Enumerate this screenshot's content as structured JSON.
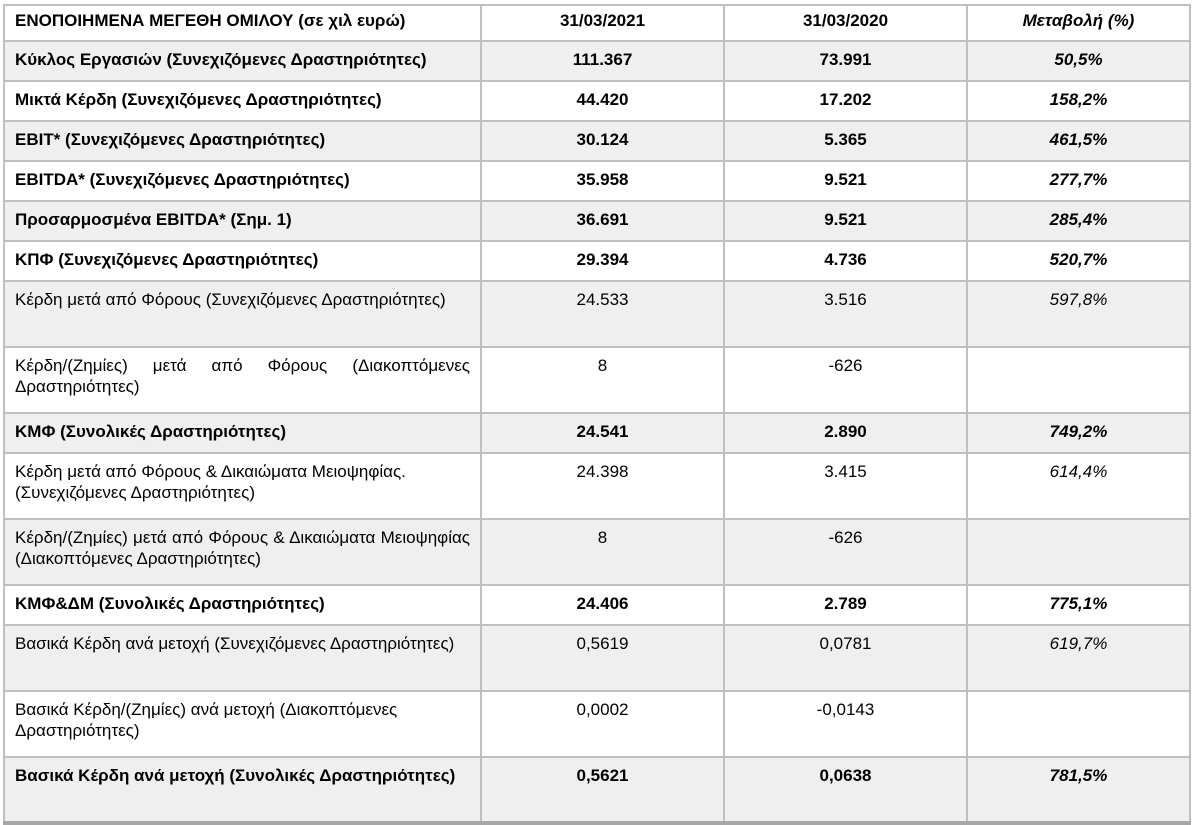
{
  "table": {
    "header": {
      "label": "ΕΝΟΠΟΙΗΜΕΝΑ ΜΕΓΕΘΗ ΟΜΙΛΟΥ (σε χιλ ευρώ)",
      "col_2021": "31/03/2021",
      "col_2020": "31/03/2020",
      "col_change": "Μεταβολή (%)"
    },
    "rows": [
      {
        "label": "Κύκλος Εργασιών (Συνεχιζόμενες Δραστηριότητες)",
        "v2021": "111.367",
        "v2020": "73.991",
        "change": "50,5%",
        "bold": true,
        "shaded": true,
        "tall": false,
        "justify": false
      },
      {
        "label": "Μικτά Κέρδη (Συνεχιζόμενες Δραστηριότητες)",
        "v2021": "44.420",
        "v2020": "17.202",
        "change": "158,2%",
        "bold": true,
        "shaded": false,
        "tall": false,
        "justify": false
      },
      {
        "label": "EBIT* (Συνεχιζόμενες Δραστηριότητες)",
        "v2021": "30.124",
        "v2020": "5.365",
        "change": "461,5%",
        "bold": true,
        "shaded": true,
        "tall": false,
        "justify": false
      },
      {
        "label": "EBITDA* (Συνεχιζόμενες Δραστηριότητες)",
        "v2021": "35.958",
        "v2020": "9.521",
        "change": "277,7%",
        "bold": true,
        "shaded": false,
        "tall": false,
        "justify": false
      },
      {
        "label": "Προσαρμοσμένα EBITDA* (Σημ. 1)",
        "v2021": "36.691",
        "v2020": "9.521",
        "change": "285,4%",
        "bold": true,
        "shaded": true,
        "tall": false,
        "justify": false
      },
      {
        "label": "ΚΠΦ (Συνεχιζόμενες Δραστηριότητες)",
        "v2021": "29.394",
        "v2020": "4.736",
        "change": "520,7%",
        "bold": true,
        "shaded": false,
        "tall": false,
        "justify": false
      },
      {
        "label": "Κέρδη μετά από Φόρους (Συνεχιζόμενες Δραστηριότητες)",
        "v2021": "24.533",
        "v2020": "3.516",
        "change": "597,8%",
        "bold": false,
        "shaded": true,
        "tall": true,
        "justify": false
      },
      {
        "label": "Κέρδη/(Ζημίες) μετά από Φόρους (Διακοπτόμενες Δραστηριότητες)",
        "v2021": "8",
        "v2020": "-626",
        "change": "",
        "bold": false,
        "shaded": false,
        "tall": true,
        "justify": true
      },
      {
        "label": "ΚΜΦ (Συνολικές Δραστηριότητες)",
        "v2021": "24.541",
        "v2020": "2.890",
        "change": "749,2%",
        "bold": true,
        "shaded": true,
        "tall": false,
        "justify": false
      },
      {
        "label": "Κέρδη μετά από Φόρους & Δικαιώματα Μειοψηφίας. (Συνεχιζόμενες Δραστηριότητες)",
        "v2021": "24.398",
        "v2020": "3.415",
        "change": "614,4%",
        "bold": false,
        "shaded": false,
        "tall": true,
        "justify": false
      },
      {
        "label": "Κέρδη/(Ζημίες) μετά από Φόρους & Δικαιώματα Μειοψηφίας (Διακοπτόμενες Δραστηριότητες)",
        "v2021": "8",
        "v2020": "-626",
        "change": "",
        "bold": false,
        "shaded": true,
        "tall": true,
        "justify": true
      },
      {
        "label": "ΚΜΦ&ΔΜ (Συνολικές Δραστηριότητες)",
        "v2021": "24.406",
        "v2020": "2.789",
        "change": "775,1%",
        "bold": true,
        "shaded": false,
        "tall": false,
        "justify": false
      },
      {
        "label": "Βασικά Κέρδη ανά μετοχή (Συνεχιζόμενες Δραστηριότητες)",
        "v2021": "0,5619",
        "v2020": "0,0781",
        "change": "619,7%",
        "bold": false,
        "shaded": true,
        "tall": true,
        "justify": true
      },
      {
        "label": "Βασικά Κέρδη/(Ζημίες) ανά μετοχή (Διακοπτόμενες Δραστηριότητες)",
        "v2021": "0,0002",
        "v2020": "-0,0143",
        "change": "",
        "bold": false,
        "shaded": false,
        "tall": true,
        "justify": false
      },
      {
        "label": "Βασικά Κέρδη ανά μετοχή (Συνολικές Δραστηριότητες)",
        "v2021": "0,5621",
        "v2020": "0,0638",
        "change": "781,5%",
        "bold": true,
        "shaded": true,
        "tall": true,
        "justify": true
      }
    ]
  },
  "colors": {
    "shaded_row_bg": "#efefef",
    "inner_border": "#bfbfbf",
    "outer_border": "#a6a6a6",
    "text": "#000000"
  }
}
